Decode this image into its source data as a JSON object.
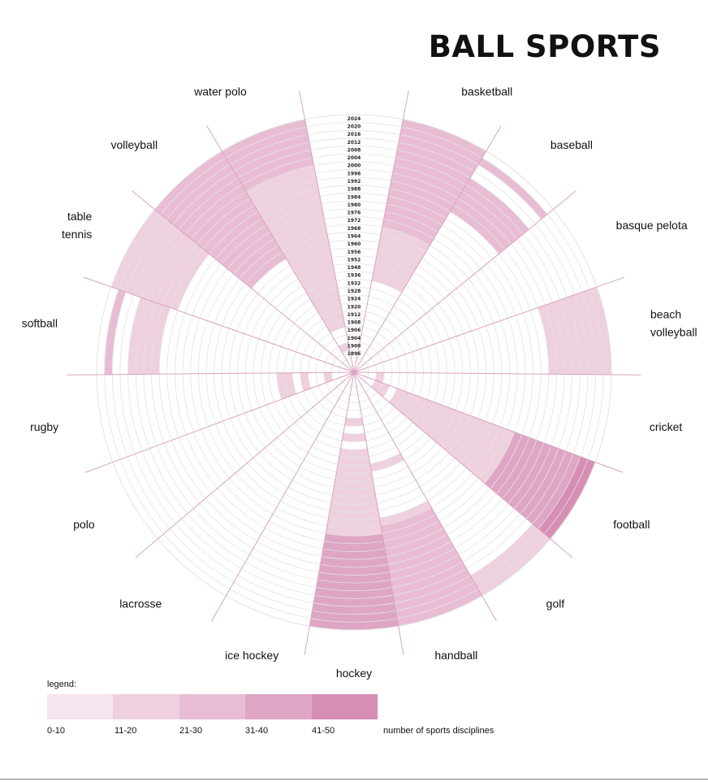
{
  "title": "BALL SPORTS",
  "chart_data": {
    "type": "radial-heatmap",
    "title": "BALL SPORTS",
    "years": [
      "1896",
      "1900",
      "1904",
      "1906",
      "1908",
      "1912",
      "1920",
      "1924",
      "1928",
      "1932",
      "1936",
      "1948",
      "1952",
      "1956",
      "1960",
      "1964",
      "1968",
      "1972",
      "1976",
      "1980",
      "1984",
      "1988",
      "1992",
      "1996",
      "2000",
      "2004",
      "2008",
      "2012",
      "2016",
      "2020",
      "2024"
    ],
    "color_scale": {
      "bins": [
        "0-10",
        "11-20",
        "21-30",
        "31-40",
        "41-50"
      ],
      "colors": [
        "#f5e5ee",
        "#efd0df",
        "#e8bdd3",
        "#dea6c4",
        "#d68eb4"
      ]
    },
    "sports": [
      {
        "name": "basketball",
        "label_lines": [
          "basketball"
        ],
        "values": [
          0,
          0,
          0,
          0,
          0,
          0,
          0,
          0,
          0,
          0,
          1,
          1,
          1,
          1,
          1,
          1,
          1,
          2,
          2,
          2,
          2,
          2,
          2,
          2,
          2,
          2,
          2,
          2,
          2,
          2,
          2
        ]
      },
      {
        "name": "baseball",
        "label_lines": [
          "baseball"
        ],
        "values": [
          0,
          0,
          0,
          0,
          0,
          0,
          0,
          0,
          0,
          0,
          0,
          0,
          0,
          0,
          0,
          0,
          0,
          0,
          0,
          0,
          0,
          0,
          2,
          2,
          2,
          2,
          2,
          0,
          0,
          2,
          0
        ]
      },
      {
        "name": "basque pelota",
        "label_lines": [
          "basque pelota"
        ],
        "values": [
          0,
          0,
          0,
          0,
          0,
          0,
          0,
          0,
          0,
          0,
          0,
          0,
          0,
          0,
          0,
          0,
          0,
          0,
          0,
          0,
          0,
          0,
          0,
          0,
          0,
          0,
          0,
          0,
          0,
          0,
          0
        ]
      },
      {
        "name": "beach volleyball",
        "label_lines": [
          "beach",
          "volleyball"
        ],
        "values": [
          0,
          0,
          0,
          0,
          0,
          0,
          0,
          0,
          0,
          0,
          0,
          0,
          0,
          0,
          0,
          0,
          0,
          0,
          0,
          0,
          0,
          0,
          0,
          1,
          1,
          1,
          1,
          1,
          1,
          1,
          1
        ]
      },
      {
        "name": "cricket",
        "label_lines": [
          "cricket"
        ],
        "values": [
          0,
          1,
          0,
          0,
          0,
          0,
          0,
          0,
          0,
          0,
          0,
          0,
          0,
          0,
          0,
          0,
          0,
          0,
          0,
          0,
          0,
          0,
          0,
          0,
          0,
          0,
          0,
          0,
          0,
          0,
          0
        ]
      },
      {
        "name": "football",
        "label_lines": [
          "football"
        ],
        "values": [
          0,
          1,
          1,
          0,
          1,
          1,
          1,
          1,
          1,
          1,
          1,
          1,
          1,
          1,
          1,
          1,
          1,
          1,
          1,
          1,
          3,
          3,
          3,
          3,
          3,
          3,
          3,
          3,
          3,
          4,
          4
        ]
      },
      {
        "name": "golf",
        "label_lines": [
          "golf"
        ],
        "values": [
          0,
          0,
          0,
          0,
          0,
          0,
          0,
          0,
          0,
          0,
          0,
          0,
          0,
          0,
          0,
          0,
          0,
          0,
          0,
          0,
          0,
          0,
          0,
          0,
          0,
          0,
          0,
          0,
          1,
          1,
          1
        ]
      },
      {
        "name": "handball",
        "label_lines": [
          "handball"
        ],
        "values": [
          0,
          0,
          0,
          0,
          0,
          0,
          0,
          0,
          0,
          0,
          1,
          0,
          0,
          0,
          0,
          0,
          0,
          1,
          2,
          2,
          2,
          2,
          2,
          2,
          2,
          2,
          2,
          2,
          2,
          2,
          2
        ]
      },
      {
        "name": "hockey",
        "label_lines": [
          "hockey"
        ],
        "values": [
          0,
          0,
          0,
          0,
          1,
          0,
          1,
          0,
          1,
          1,
          1,
          1,
          1,
          1,
          1,
          1,
          1,
          1,
          1,
          3,
          3,
          3,
          3,
          3,
          3,
          3,
          3,
          3,
          3,
          3,
          3
        ]
      },
      {
        "name": "ice hockey",
        "label_lines": [
          "ice hockey"
        ],
        "values": [
          0,
          0,
          0,
          0,
          0,
          0,
          0,
          0,
          0,
          0,
          0,
          0,
          0,
          0,
          0,
          0,
          0,
          0,
          0,
          0,
          0,
          0,
          0,
          0,
          0,
          0,
          0,
          0,
          0,
          0,
          0
        ]
      },
      {
        "name": "lacrosse",
        "label_lines": [
          "lacrosse"
        ],
        "values": [
          0,
          0,
          0,
          0,
          0,
          0,
          0,
          0,
          0,
          0,
          0,
          0,
          0,
          0,
          0,
          0,
          0,
          0,
          0,
          0,
          0,
          0,
          0,
          0,
          0,
          0,
          0,
          0,
          0,
          0,
          0
        ]
      },
      {
        "name": "polo",
        "label_lines": [
          "polo"
        ],
        "values": [
          0,
          0,
          0,
          0,
          0,
          0,
          0,
          0,
          0,
          0,
          0,
          0,
          0,
          0,
          0,
          0,
          0,
          0,
          0,
          0,
          0,
          0,
          0,
          0,
          0,
          0,
          0,
          0,
          0,
          0,
          0
        ]
      },
      {
        "name": "rugby",
        "label_lines": [
          "rugby"
        ],
        "values": [
          0,
          1,
          0,
          0,
          1,
          0,
          1,
          1,
          0,
          0,
          0,
          0,
          0,
          0,
          0,
          0,
          0,
          0,
          0,
          0,
          0,
          0,
          0,
          0,
          0,
          0,
          0,
          0,
          0,
          0,
          0
        ]
      },
      {
        "name": "softball",
        "label_lines": [
          "softball"
        ],
        "values": [
          0,
          0,
          0,
          0,
          0,
          0,
          0,
          0,
          0,
          0,
          0,
          0,
          0,
          0,
          0,
          0,
          0,
          0,
          0,
          0,
          0,
          0,
          0,
          1,
          1,
          1,
          1,
          0,
          0,
          2,
          0
        ]
      },
      {
        "name": "table tennis",
        "label_lines": [
          "table",
          "tennis"
        ],
        "values": [
          0,
          0,
          0,
          0,
          0,
          0,
          0,
          0,
          0,
          0,
          0,
          0,
          0,
          0,
          0,
          0,
          0,
          0,
          0,
          0,
          0,
          0,
          1,
          1,
          1,
          1,
          1,
          1,
          1,
          1,
          1
        ]
      },
      {
        "name": "volleyball",
        "label_lines": [
          "volleyball"
        ],
        "values": [
          0,
          0,
          0,
          0,
          0,
          0,
          0,
          0,
          0,
          0,
          0,
          0,
          0,
          0,
          0,
          2,
          2,
          2,
          2,
          2,
          2,
          2,
          2,
          2,
          2,
          2,
          2,
          2,
          2,
          2,
          2
        ]
      },
      {
        "name": "water polo",
        "label_lines": [
          "water polo"
        ],
        "values": [
          0,
          1,
          0,
          0,
          1,
          1,
          1,
          1,
          1,
          1,
          1,
          1,
          1,
          1,
          1,
          1,
          1,
          1,
          1,
          1,
          1,
          1,
          1,
          1,
          1,
          2,
          2,
          2,
          2,
          2,
          2
        ]
      }
    ]
  },
  "legend": {
    "title": "legend:",
    "labels": [
      "0-10",
      "11-20",
      "21-30",
      "31-40",
      "41-50"
    ],
    "unit": "number of sports disciplines"
  }
}
